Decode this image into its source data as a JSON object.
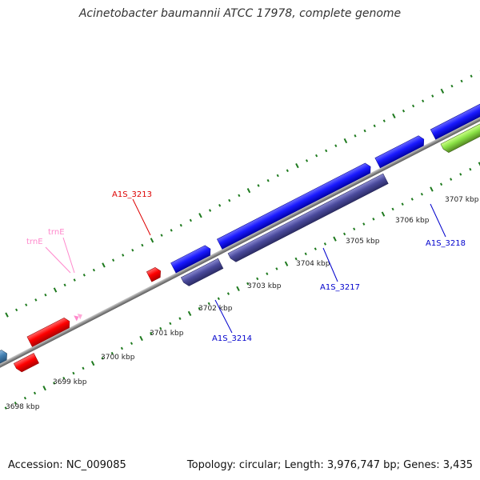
{
  "title": "Acinetobacter baumannii ATCC 17978, complete genome",
  "footer": {
    "accession": "Accession: NC_009085",
    "summary": "Topology: circular; Length: 3,976,747 bp; Genes: 3,435"
  },
  "ticks": [
    "3698 kbp",
    "3699 kbp",
    "3700 kbp",
    "3701 kbp",
    "3702 kbp",
    "3703 kbp",
    "3704 kbp",
    "3705 kbp",
    "3706 kbp",
    "3707 kbp"
  ],
  "labels": {
    "trnE_a": "trnE",
    "trnE_b": "trnE",
    "a1s_3213": "A1S_3213",
    "a1s_3214": "A1S_3214",
    "a1s_3217": "A1S_3217",
    "a1s_3218": "A1S_3218"
  },
  "colors": {
    "background": "#ffffff",
    "backbone": "#8c8c8c",
    "tick_marks": "#1e7a1e",
    "gene_red": "#ff0000",
    "gene_blue": "#1a1aff",
    "gene_slate": "#4a4a9c",
    "gene_steel": "#4682b4",
    "gene_green": "#88e044",
    "trna_pink": "#ff88cc",
    "label_red": "#dd0000",
    "label_blue": "#0000cc",
    "label_pink": "#ff88cc"
  }
}
